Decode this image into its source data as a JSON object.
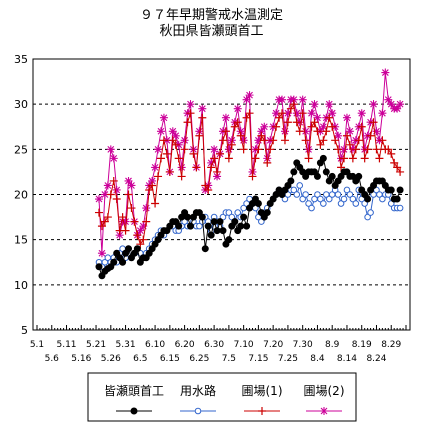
{
  "chart_data": {
    "type": "line",
    "title_line1": "９７年早期警戒水温測定",
    "title_line2": "秋田県皆瀬頭首工",
    "ylim": [
      5,
      35
    ],
    "yticks": [
      "5",
      "10",
      "15",
      "20",
      "25",
      "30",
      "35"
    ],
    "grid": "horizontal dashed",
    "x_start": "5.1",
    "x_end": "9.3",
    "xticks_upper": [
      "5.1",
      "5.11",
      "5.21",
      "5.31",
      "6.10",
      "6.20",
      "6.30",
      "7.10",
      "7.20",
      "7.30",
      "8.9",
      "8.19",
      "8.29"
    ],
    "xticks_lower": [
      "5.6",
      "5.16",
      "5.26",
      "6.5",
      "6.15",
      "6.25",
      "7.5",
      "7.15",
      "7.25",
      "8.4",
      "8.14",
      "8.24"
    ],
    "legend_position": "bottom",
    "series": [
      {
        "name": "皆瀬頭首工",
        "color": "#000000",
        "marker": "dot",
        "start_day": 21,
        "values": [
          12.0,
          11.0,
          11.5,
          11.8,
          12.0,
          12.5,
          13.5,
          13.0,
          12.5,
          13.5,
          14.0,
          13.0,
          13.5,
          14.0,
          12.5,
          13.0,
          13.0,
          13.5,
          14.0,
          14.5,
          15.0,
          15.5,
          16.0,
          16.0,
          16.5,
          17.0,
          17.0,
          16.5,
          17.5,
          18.0,
          17.5,
          16.5,
          17.5,
          18.0,
          18.0,
          17.5,
          14.0,
          16.5,
          15.5,
          17.0,
          16.0,
          17.0,
          16.0,
          14.5,
          15.0,
          16.5,
          17.0,
          16.0,
          16.5,
          17.5,
          16.5,
          18.5,
          19.0,
          19.5,
          19.0,
          18.0,
          17.5,
          18.0,
          19.0,
          19.5,
          20.0,
          20.5,
          20.0,
          20.5,
          21.0,
          21.5,
          22.5,
          23.5,
          23.0,
          22.5,
          22.0,
          22.5,
          22.5,
          22.5,
          22.0,
          23.5,
          24.0,
          22.5,
          21.5,
          22.0,
          21.0,
          21.5,
          22.0,
          22.5,
          22.5,
          22.0,
          22.0,
          21.5,
          22.0,
          20.5,
          20.0,
          19.5,
          20.5,
          21.0,
          21.5,
          21.5,
          21.5,
          21.0,
          20.5,
          20.5,
          19.5,
          19.5,
          20.5
        ]
      },
      {
        "name": "用水路",
        "color": "#3366cc",
        "marker": "circle",
        "start_day": 21,
        "values": [
          12.5,
          12.0,
          12.5,
          13.0,
          12.5,
          13.0,
          12.5,
          13.5,
          14.0,
          13.0,
          14.0,
          13.0,
          13.5,
          14.0,
          13.5,
          13.0,
          13.5,
          14.0,
          14.5,
          15.0,
          15.5,
          16.0,
          15.5,
          16.0,
          16.5,
          16.5,
          16.0,
          16.0,
          16.5,
          17.0,
          16.5,
          16.5,
          17.0,
          16.5,
          16.5,
          17.0,
          17.5,
          17.0,
          16.0,
          17.5,
          17.0,
          16.5,
          17.5,
          18.0,
          18.0,
          17.5,
          17.0,
          18.0,
          17.5,
          18.5,
          19.0,
          19.5,
          19.0,
          18.5,
          17.5,
          17.0,
          18.0,
          18.5,
          19.0,
          19.5,
          20.0,
          20.5,
          20.0,
          19.5,
          20.0,
          20.5,
          20.5,
          20.0,
          21.0,
          19.5,
          20.0,
          19.0,
          18.5,
          19.5,
          20.0,
          19.5,
          19.0,
          20.0,
          19.5,
          20.0,
          20.5,
          20.0,
          19.0,
          19.5,
          20.5,
          20.0,
          19.5,
          19.0,
          20.5,
          19.5,
          19.0,
          17.5,
          18.0,
          20.0,
          20.5,
          20.0,
          19.5,
          20.0,
          20.0,
          19.0,
          18.5,
          18.5,
          18.5
        ]
      },
      {
        "name": "圃場(1)",
        "color": "#cc0000",
        "marker": "plus",
        "start_day": 21,
        "values": [
          18.0,
          16.5,
          17.0,
          17.5,
          20.0,
          21.5,
          19.5,
          16.0,
          17.5,
          16.0,
          20.0,
          18.5,
          17.0,
          15.5,
          14.5,
          15.0,
          17.0,
          20.5,
          21.0,
          19.0,
          22.0,
          24.0,
          26.0,
          24.5,
          22.5,
          26.0,
          25.5,
          24.0,
          22.0,
          25.0,
          28.0,
          29.0,
          24.5,
          23.0,
          26.5,
          28.5,
          21.0,
          20.5,
          23.0,
          24.0,
          22.5,
          24.5,
          26.0,
          27.0,
          24.0,
          25.5,
          27.5,
          28.0,
          26.5,
          25.0,
          28.5,
          29.0,
          22.0,
          24.0,
          25.0,
          26.5,
          26.0,
          23.5,
          25.0,
          26.0,
          27.5,
          28.5,
          29.0,
          26.0,
          28.0,
          29.5,
          30.0,
          28.0,
          27.0,
          29.0,
          26.0,
          24.0,
          27.5,
          28.0,
          27.0,
          25.5,
          26.0,
          27.0,
          28.5,
          27.5,
          26.0,
          25.0,
          23.0,
          24.0,
          26.5,
          25.5,
          24.0,
          25.0,
          26.0,
          27.5,
          24.0,
          25.0,
          26.5,
          28.0,
          25.0,
          24.0,
          26.0,
          25.0,
          25.0,
          24.5,
          23.5,
          23.0,
          22.5
        ]
      },
      {
        "name": "圃場(2)",
        "color": "#cc0099",
        "marker": "star",
        "start_day": 21,
        "values": [
          19.5,
          13.5,
          20.0,
          21.0,
          25.0,
          24.0,
          20.5,
          15.5,
          17.0,
          17.0,
          21.5,
          21.0,
          17.0,
          15.5,
          16.0,
          16.5,
          18.5,
          21.0,
          21.5,
          23.0,
          25.0,
          27.0,
          28.5,
          26.0,
          22.5,
          27.0,
          26.5,
          25.5,
          23.0,
          26.0,
          29.0,
          30.0,
          25.0,
          23.0,
          27.0,
          29.5,
          20.5,
          21.0,
          23.5,
          25.0,
          22.0,
          24.5,
          27.0,
          28.5,
          25.0,
          26.0,
          28.0,
          29.5,
          27.0,
          26.0,
          30.5,
          31.0,
          22.5,
          25.0,
          26.0,
          27.0,
          27.5,
          24.0,
          26.0,
          27.5,
          29.0,
          30.5,
          30.5,
          27.0,
          29.0,
          30.5,
          30.5,
          29.0,
          28.0,
          30.5,
          27.0,
          25.0,
          29.0,
          30.0,
          28.5,
          27.0,
          27.5,
          28.5,
          30.0,
          29.0,
          27.5,
          26.5,
          24.0,
          25.0,
          28.5,
          27.0,
          25.0,
          26.0,
          27.5,
          29.0,
          25.0,
          26.5,
          28.0,
          30.0,
          27.0,
          26.0,
          29.0,
          33.5,
          30.5,
          30.0,
          29.5,
          29.5,
          30.0
        ]
      }
    ]
  }
}
